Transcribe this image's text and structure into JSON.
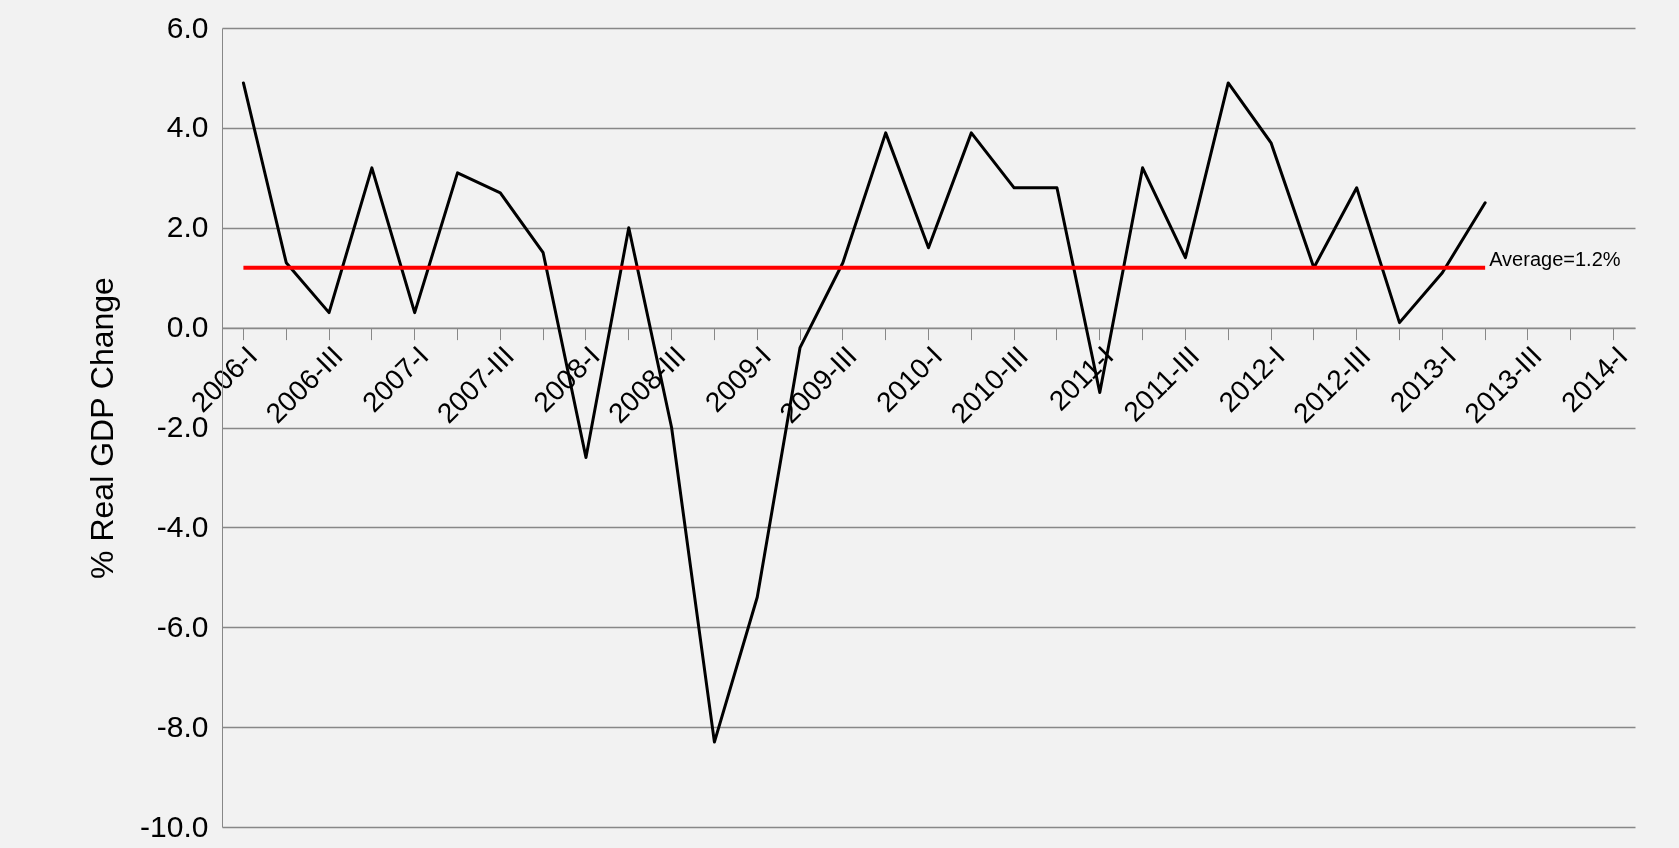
{
  "chart_data": {
    "type": "line",
    "ylabel": "%   Real GDP Change",
    "categories": [
      "2006-I",
      null,
      "2006-III",
      null,
      "2007-I",
      null,
      "2007-III",
      null,
      "2008-I",
      null,
      "2008-III",
      null,
      "2009-I",
      null,
      "2009-III",
      null,
      "2010-I",
      null,
      "2010-III",
      null,
      "2011-I",
      null,
      "2011-III",
      null,
      "2012-I",
      null,
      "2012-III",
      null,
      "2013-I",
      null,
      "2013-III",
      null,
      "2014-I"
    ],
    "series": [
      {
        "color": "#000000",
        "values": [
          4.9,
          1.3,
          0.3,
          3.2,
          0.3,
          3.1,
          2.7,
          1.5,
          -2.6,
          2.0,
          -2.0,
          -8.3,
          -5.4,
          -0.4,
          1.3,
          3.9,
          1.6,
          3.9,
          2.8,
          2.8,
          -1.3,
          3.2,
          1.4,
          4.9,
          3.7,
          1.2,
          2.8,
          0.1,
          1.1,
          2.5,
          null,
          null,
          null
        ]
      }
    ],
    "ylim": [
      -10,
      6
    ],
    "yticks": [
      {
        "value": -10,
        "label": "-10.0"
      },
      {
        "value": -8,
        "label": "-8.0"
      },
      {
        "value": -6,
        "label": "-6.0"
      },
      {
        "value": -4,
        "label": "-4.0"
      },
      {
        "value": -2,
        "label": "-2.0"
      },
      {
        "value": 0,
        "label": "0.0"
      },
      {
        "value": 2,
        "label": "2.0"
      },
      {
        "value": 4,
        "label": "4.0"
      },
      {
        "value": 6,
        "label": "6.0"
      }
    ],
    "grid": "y",
    "marker": "none",
    "line_style": "solid",
    "ref_lines": [
      {
        "axis": "y",
        "value": 1.2,
        "label": "Average=1.2%",
        "color": "#ff0000"
      }
    ]
  }
}
